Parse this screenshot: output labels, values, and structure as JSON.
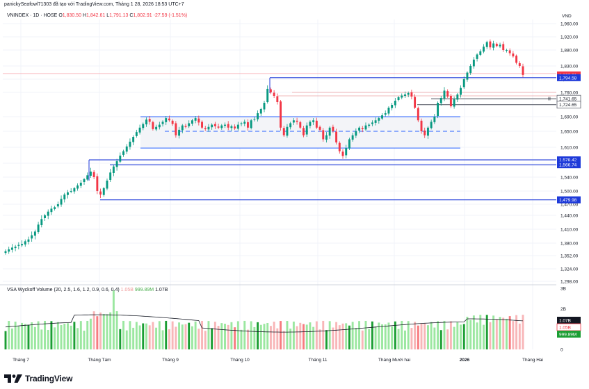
{
  "header": {
    "credit": "panickySeafowl71303 đã tạo với TradingView.com, Tháng 1 28, 2026 18:53 UTC+7"
  },
  "symbol_bar": {
    "symbol": "VNINDEX · 1D · HOSE",
    "open_label": "O",
    "open": "1,830.50",
    "high_label": "H",
    "high": "1,842.61",
    "low_label": "L",
    "low": "1,791.13",
    "close_label": "C",
    "close": "1,802.91",
    "change": "-27.59 (-1.51%)"
  },
  "indicator_bar": {
    "name": "VSA Wyckoff Volume (20, 2.5, 1.6, 1.2, 0.9, 0.6, 0.4)",
    "v1": "1.05B",
    "v2": "999.89M",
    "v3": "1.07B"
  },
  "brand": {
    "name": "TradingView"
  },
  "colors": {
    "up": "#089981",
    "down": "#f23645",
    "level_blue": "#1e3ad9",
    "range_blue": "#2962ff"
  },
  "chart_data": {
    "type": "candlestick",
    "currency": "VND",
    "y_ticks": [
      "1,960.00",
      "1,920.00",
      "1,880.00",
      "1,830.00",
      "1,790.00",
      "1,760.00",
      "1,690.00",
      "1,650.00",
      "1,610.00",
      "1,570.00",
      "1,540.00",
      "1,500.00",
      "1,470.00",
      "1,440.00",
      "1,410.00",
      "1,380.00",
      "1,352.00",
      "1,324.00",
      "1,298.00"
    ],
    "x_ticks": [
      "Tháng 7",
      "Tháng Tám",
      "Tháng 9",
      "Tháng 10",
      "Tháng 11",
      "Tháng Mười hai",
      "2026",
      "Tháng Hai"
    ],
    "ylim": [
      1290,
      1975
    ],
    "price_labels": [
      {
        "text": "1,802.91",
        "value": 1802.91,
        "style": "last"
      },
      {
        "text": "1,794.58",
        "value": 1794.58,
        "style": "level"
      },
      {
        "text": "1,741.65",
        "value": 1741.65,
        "style": "gray"
      },
      {
        "text": "1,724.65",
        "value": 1724.65,
        "style": "gray"
      },
      {
        "text": "1,578.42",
        "value": 1578.42,
        "style": "level"
      },
      {
        "text": "1,566.74",
        "value": 1566.74,
        "style": "level"
      },
      {
        "text": "1,479.98",
        "value": 1479.98,
        "style": "level"
      }
    ],
    "horizontal_levels": [
      1794.58,
      1566.74,
      1578.42,
      1479.98,
      1741.65,
      1724.65
    ],
    "range_box": {
      "top": 1690,
      "mid": 1650,
      "bottom": 1608
    },
    "volume_ticks": [
      "3B",
      "2B",
      "1B",
      "0"
    ],
    "volume_labels": [
      {
        "text": "1.07B",
        "value": 1.07,
        "style": "dark"
      },
      {
        "text": "1.05B",
        "value": 1.05,
        "style": "red"
      },
      {
        "text": "999.89M",
        "value": 0.99989,
        "style": "green"
      }
    ],
    "series": [
      {
        "name": "close",
        "values": [
          1362,
          1366,
          1370,
          1372,
          1376,
          1378,
          1384,
          1388,
          1397,
          1405,
          1420,
          1432,
          1440,
          1450,
          1458,
          1462,
          1470,
          1482,
          1492,
          1497,
          1500,
          1508,
          1516,
          1524,
          1534,
          1544,
          1552,
          1540,
          1500,
          1492,
          1508,
          1530,
          1550,
          1563,
          1575,
          1589,
          1600,
          1612,
          1624,
          1636,
          1648,
          1660,
          1670,
          1682,
          1676,
          1656,
          1662,
          1668,
          1676,
          1686,
          1680,
          1670,
          1640,
          1654,
          1666,
          1662,
          1672,
          1680,
          1686,
          1674,
          1660,
          1656,
          1662,
          1668,
          1664,
          1660,
          1666,
          1668,
          1660,
          1664,
          1658,
          1668,
          1672,
          1676,
          1660,
          1680,
          1684,
          1700,
          1712,
          1730,
          1768,
          1760,
          1750,
          1732,
          1660,
          1640,
          1662,
          1672,
          1680,
          1676,
          1660,
          1640,
          1666,
          1676,
          1680,
          1660,
          1654,
          1630,
          1640,
          1660,
          1650,
          1622,
          1600,
          1588,
          1608,
          1630,
          1640,
          1650,
          1660,
          1656,
          1666,
          1668,
          1674,
          1680,
          1686,
          1694,
          1700,
          1716,
          1724,
          1736,
          1746,
          1751,
          1754,
          1758,
          1748,
          1716,
          1680,
          1650,
          1640,
          1660,
          1676,
          1690,
          1730,
          1744,
          1764,
          1748,
          1720,
          1740,
          1754,
          1770,
          1790,
          1810,
          1830,
          1850,
          1866,
          1876,
          1890,
          1904,
          1888,
          1900,
          1892,
          1896,
          1880,
          1880,
          1870,
          1860,
          1840,
          1830,
          1802.91
        ]
      }
    ],
    "volume": {
      "unit": "B",
      "ymax": 3
    }
  }
}
